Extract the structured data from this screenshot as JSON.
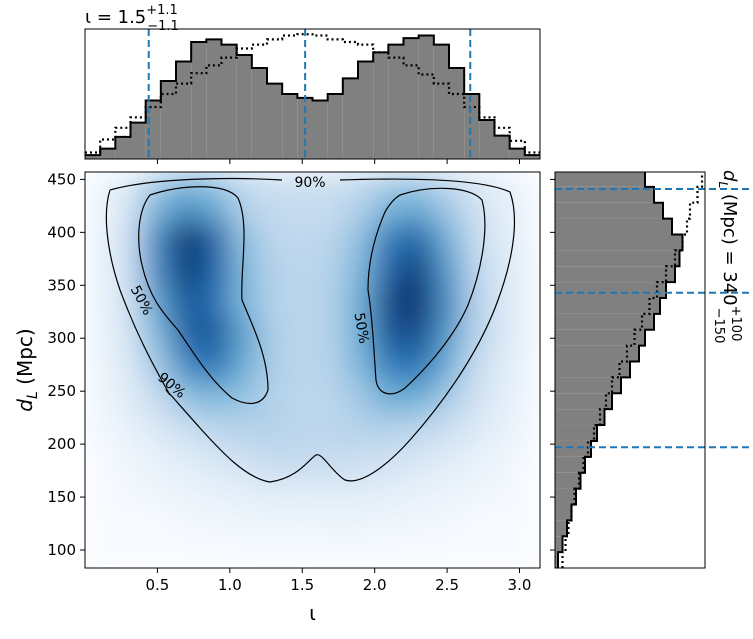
{
  "chart_data": [
    {
      "type": "heatmap",
      "xlabel": "ι",
      "ylabel": {
        "symbol": "d",
        "subscript": "L",
        "unit": "(Mpc)"
      },
      "xlim": [
        0,
        3.1416
      ],
      "ylim": [
        83,
        457
      ],
      "xticks": [
        0.5,
        {
          "value": 1,
          "label": "1.0"
        },
        1.5,
        {
          "value": 2,
          "label": "2.0"
        },
        2.5,
        {
          "value": 3,
          "label": "3.0"
        }
      ],
      "yticks": [
        100,
        150,
        200,
        250,
        300,
        350,
        400,
        450
      ],
      "xbins": [
        0,
        0.2,
        0.4,
        0.6,
        0.8,
        1.0,
        1.2,
        1.4,
        1.6,
        1.8,
        2.0,
        2.2,
        2.4,
        2.6,
        2.8,
        3.0,
        3.1416
      ],
      "ybins": [
        83,
        110,
        140,
        170,
        200,
        230,
        260,
        290,
        320,
        350,
        380,
        410,
        440,
        457
      ],
      "z": [
        [
          0,
          0,
          0,
          0,
          0,
          0,
          0,
          0,
          0,
          0,
          0,
          0,
          0,
          0,
          0,
          0
        ],
        [
          0,
          0,
          0,
          0.02,
          0.03,
          0.04,
          0.05,
          0.04,
          0.05,
          0.05,
          0.04,
          0.03,
          0.02,
          0,
          0,
          0
        ],
        [
          0,
          0.02,
          0.04,
          0.06,
          0.08,
          0.1,
          0.12,
          0.12,
          0.12,
          0.12,
          0.1,
          0.08,
          0.06,
          0.04,
          0.02,
          0
        ],
        [
          0,
          0.04,
          0.08,
          0.12,
          0.16,
          0.2,
          0.25,
          0.25,
          0.25,
          0.22,
          0.2,
          0.16,
          0.12,
          0.08,
          0.04,
          0
        ],
        [
          0.02,
          0.08,
          0.15,
          0.22,
          0.28,
          0.3,
          0.3,
          0.28,
          0.28,
          0.3,
          0.3,
          0.28,
          0.22,
          0.15,
          0.08,
          0.02
        ],
        [
          0.03,
          0.12,
          0.25,
          0.4,
          0.45,
          0.38,
          0.3,
          0.28,
          0.28,
          0.35,
          0.5,
          0.5,
          0.35,
          0.2,
          0.1,
          0.03
        ],
        [
          0.04,
          0.15,
          0.35,
          0.65,
          0.75,
          0.5,
          0.32,
          0.28,
          0.3,
          0.45,
          0.7,
          0.75,
          0.5,
          0.25,
          0.12,
          0.04
        ],
        [
          0.05,
          0.18,
          0.45,
          0.8,
          0.85,
          0.55,
          0.32,
          0.28,
          0.3,
          0.5,
          0.85,
          0.9,
          0.6,
          0.3,
          0.14,
          0.05
        ],
        [
          0.05,
          0.2,
          0.55,
          0.85,
          0.75,
          0.45,
          0.3,
          0.28,
          0.3,
          0.5,
          0.9,
          1.0,
          0.65,
          0.3,
          0.15,
          0.05
        ],
        [
          0.05,
          0.22,
          0.65,
          0.95,
          0.8,
          0.45,
          0.3,
          0.28,
          0.3,
          0.45,
          0.8,
          0.95,
          0.6,
          0.28,
          0.14,
          0.05
        ],
        [
          0.05,
          0.22,
          0.65,
          1.0,
          0.8,
          0.4,
          0.28,
          0.26,
          0.28,
          0.4,
          0.7,
          0.8,
          0.5,
          0.25,
          0.12,
          0.04
        ],
        [
          0.04,
          0.18,
          0.45,
          0.6,
          0.5,
          0.3,
          0.25,
          0.24,
          0.25,
          0.3,
          0.45,
          0.5,
          0.35,
          0.2,
          0.1,
          0.03
        ],
        [
          0.03,
          0.12,
          0.3,
          0.4,
          0.35,
          0.25,
          0.22,
          0.22,
          0.22,
          0.25,
          0.3,
          0.32,
          0.25,
          0.15,
          0.08,
          0.02
        ]
      ],
      "contour_labels": [
        "90%",
        "50%"
      ]
    },
    {
      "type": "histogram",
      "title": {
        "text": "ι = 1.5",
        "sup": "+1.1",
        "sub": "−1.1"
      },
      "xlim": [
        0,
        3.1416
      ],
      "ylim": [
        0,
        1.0
      ],
      "xticks": [
        0.5,
        1,
        1.5,
        2,
        2.5,
        3
      ],
      "bins": [
        0,
        0.1047,
        0.2094,
        0.3142,
        0.4189,
        0.5236,
        0.6283,
        0.733,
        0.8378,
        0.9425,
        1.0472,
        1.1519,
        1.2566,
        1.3614,
        1.4661,
        1.5708,
        1.6755,
        1.7802,
        1.885,
        1.9897,
        2.0944,
        2.1991,
        2.3038,
        2.4086,
        2.5133,
        2.618,
        2.7227,
        2.8274,
        2.9322,
        3.0369,
        3.1416
      ],
      "series": [
        {
          "color": "#808080",
          "values": [
            0.03,
            0.08,
            0.17,
            0.28,
            0.45,
            0.6,
            0.75,
            0.9,
            0.92,
            0.88,
            0.8,
            0.7,
            0.58,
            0.5,
            0.47,
            0.45,
            0.5,
            0.62,
            0.75,
            0.82,
            0.88,
            0.93,
            0.95,
            0.88,
            0.7,
            0.5,
            0.3,
            0.18,
            0.08,
            0.03
          ]
        },
        {
          "style": "dotted",
          "values": [
            0.05,
            0.15,
            0.24,
            0.32,
            0.4,
            0.5,
            0.58,
            0.66,
            0.72,
            0.78,
            0.85,
            0.88,
            0.92,
            0.95,
            0.96,
            0.95,
            0.92,
            0.9,
            0.88,
            0.82,
            0.78,
            0.72,
            0.65,
            0.58,
            0.5,
            0.4,
            0.32,
            0.24,
            0.14,
            0.05
          ]
        }
      ],
      "lines": [
        0.44,
        1.52,
        2.66
      ],
      "line_color": "#1f77b4"
    },
    {
      "type": "histogram",
      "orientation": "horizontal",
      "title": {
        "text": "d",
        "subscript": "L",
        "middle": " (Mpc) = 340",
        "sup": "+100",
        "sub": "−150"
      },
      "ylim": [
        83,
        457
      ],
      "xlim": [
        0,
        1.0
      ],
      "yticks": [
        100,
        150,
        200,
        250,
        300,
        350,
        400,
        450
      ],
      "bins": [
        83,
        98,
        113,
        128,
        143,
        158,
        173,
        188,
        203,
        218,
        233,
        248,
        263,
        278,
        293,
        308,
        323,
        338,
        353,
        368,
        383,
        398,
        413,
        428,
        443,
        457
      ],
      "series": [
        {
          "color": "#808080",
          "values": [
            0.02,
            0.05,
            0.08,
            0.11,
            0.14,
            0.17,
            0.2,
            0.24,
            0.28,
            0.33,
            0.38,
            0.44,
            0.5,
            0.56,
            0.6,
            0.66,
            0.7,
            0.74,
            0.8,
            0.83,
            0.85,
            0.78,
            0.72,
            0.66,
            0.6
          ]
        },
        {
          "style": "dotted",
          "values": [
            0.05,
            0.07,
            0.09,
            0.11,
            0.13,
            0.16,
            0.19,
            0.22,
            0.26,
            0.3,
            0.34,
            0.38,
            0.43,
            0.48,
            0.53,
            0.58,
            0.63,
            0.68,
            0.74,
            0.8,
            0.85,
            0.88,
            0.9,
            0.95,
            0.98
          ]
        }
      ],
      "lines": [
        197,
        343,
        441
      ],
      "line_color": "#1f77b4"
    }
  ]
}
